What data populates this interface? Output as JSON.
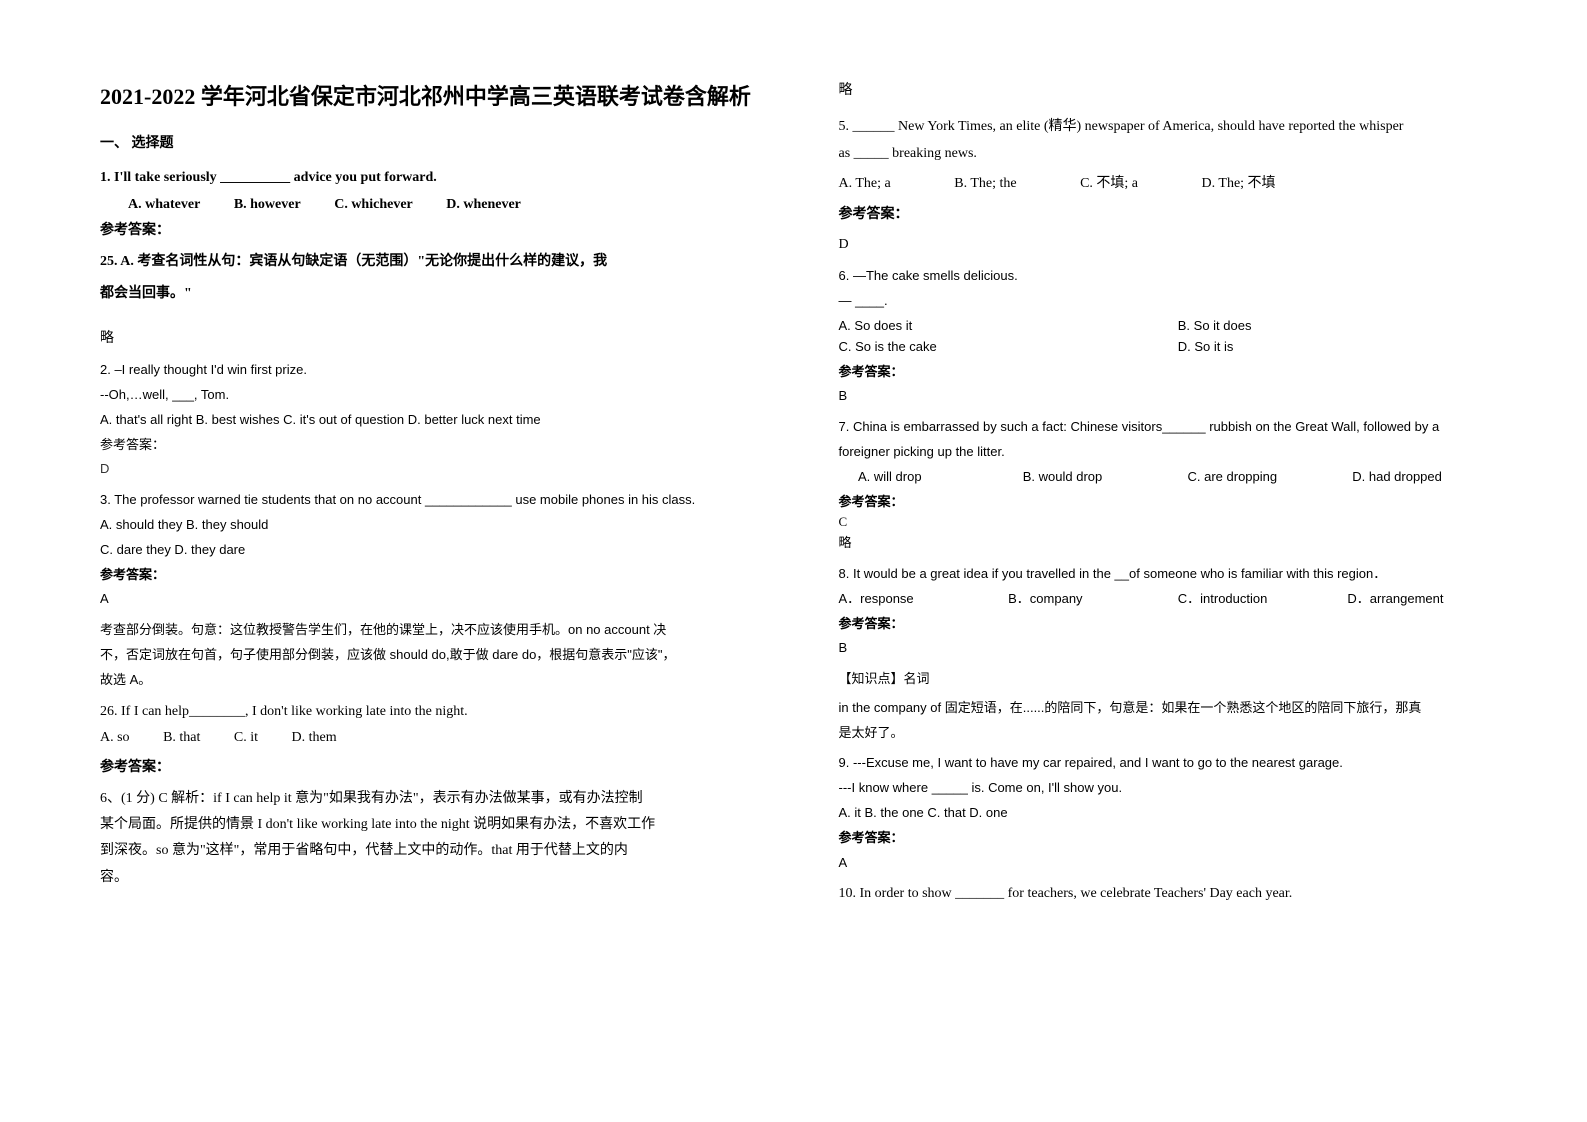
{
  "title": "2021-2022 学年河北省保定市河北祁州中学高三英语联考试卷含解析",
  "section1": "一、 选择题",
  "left": {
    "q1": {
      "text": "1. I'll take seriously __________ advice you put forward.",
      "opts": {
        "a": "A. whatever",
        "b": "B. however",
        "c": "C. whichever",
        "d": "D. whenever"
      },
      "ansLabel": "参考答案：",
      "explain1": "25. A. 考查名词性从句：宾语从句缺定语（无范围）\"无论你提出什么样的建议，我",
      "explain2": "都会当回事。\"",
      "skip": "略"
    },
    "q2": {
      "line1": "2. –I really thought I'd win first prize.",
      "line2": "  --Oh,…well, ___, Tom.",
      "opts": "A. that's all right   B. best wishes    C. it's out of question   D. better luck next time",
      "ansLabel": "参考答案：",
      "ans": "D"
    },
    "q3": {
      "text": "3. The professor warned tie students that on no account ____________ use mobile phones in his class.",
      "opts1": "A. should they   B. they should",
      "opts2": "C. dare they     D. they dare",
      "ansLabel": "参考答案：",
      "ans": "A",
      "exp1": "考查部分倒装。句意：这位教授警告学生们，在他的课堂上，决不应该使用手机。on no account 决",
      "exp2": "不，否定词放在句首，句子使用部分倒装，应该做 should do,敢于做 dare do，根据句意表示\"应该\"，",
      "exp3": "故选 A。"
    },
    "q26": {
      "text": "26. If I can help________, I don't like working late into the night.",
      "opts": {
        "a": "A. so",
        "b": "B. that",
        "c": "C. it",
        "d": "D. them"
      },
      "ansLabel": "参考答案：",
      "exp1": "6、(1 分) C  解析：if I can help it 意为\"如果我有办法\"，表示有办法做某事，或有办法控制",
      "exp2": "某个局面。所提供的情景 I don't like working late into the night 说明如果有办法，不喜欢工作",
      "exp3": "到深夜。so 意为\"这样\"，常用于省略句中，代替上文中的动作。that 用于代替上文的内",
      "exp4": "容。"
    }
  },
  "right": {
    "skip": "略",
    "q5": {
      "line1": "5. ______ New York Times, an elite (精华) newspaper of America, should have reported the whisper",
      "line2": "as _____ breaking news.",
      "opts": {
        "a": "A. The; a",
        "b": "B. The; the",
        "c": "C. 不填; a",
        "d": "D. The; 不填"
      },
      "ansLabel": "参考答案：",
      "ans": "D"
    },
    "q6": {
      "line1": "6. —The cake smells delicious.",
      "line2": "— ____.",
      "oA": "A. So does it",
      "oB": "B. So it does",
      "oC": "C. So is the cake",
      "oD": "D. So it is",
      "ansLabel": "参考答案：",
      "ans": "B"
    },
    "q7": {
      "line1": "7. China is embarrassed by such a fact: Chinese visitors______ rubbish on the Great Wall, followed by a",
      "line2": "foreigner picking up the litter.",
      "opts": {
        "a": "A. will drop",
        "b": "B. would drop",
        "c": "C. are dropping",
        "d": "D. had dropped"
      },
      "ansLabel": "参考答案：",
      "ans": "C",
      "skip": "略"
    },
    "q8": {
      "text": "8. It would be a great idea if you travelled in the __of someone who is familiar with this region．",
      "opts": {
        "a": "A．response",
        "b": "B．company",
        "c": "C．introduction",
        "d": "D．arrangement"
      },
      "ansLabel": "参考答案：",
      "ans": "B",
      "kp": "【知识点】名词",
      "exp1": "in the company of 固定短语，在......的陪同下，句意是：如果在一个熟悉这个地区的陪同下旅行，那真",
      "exp2": "是太好了。"
    },
    "q9": {
      "line1": "9. ---Excuse me, I want to have my car repaired, and I want to go to the nearest garage.",
      "line2": "---I know where _____ is. Come on, I'll show you.",
      "opts": "A. it  B. the one  C. that  D. one",
      "ansLabel": "参考答案：",
      "ans": "A"
    },
    "q10": {
      "text": "10. In order to show _______ for teachers, we celebrate Teachers' Day each year."
    }
  }
}
